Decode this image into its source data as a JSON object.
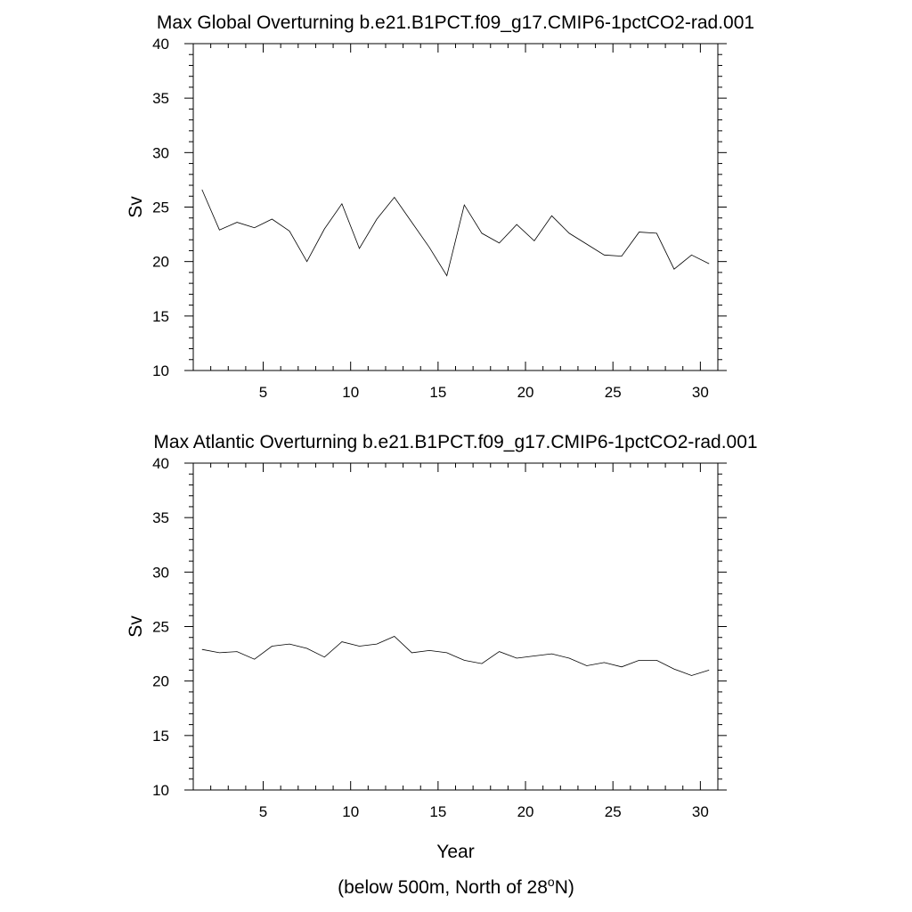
{
  "chart_data": [
    {
      "type": "line",
      "title": "Max Global Overturning b.e21.B1PCT.f09_g17.CMIP6-1pctCO2-rad.001",
      "xlabel": "",
      "ylabel": "Sv",
      "xlim": [
        1,
        31
      ],
      "ylim": [
        10,
        40
      ],
      "xticks": [
        5,
        10,
        15,
        20,
        25,
        30
      ],
      "yticks": [
        10,
        15,
        20,
        25,
        30,
        35,
        40
      ],
      "grid": false,
      "series": [
        {
          "x": [
            1.5,
            2.5,
            3.5,
            4.5,
            5.5,
            6.5,
            7.5,
            8.5,
            9.5,
            10.5,
            11.5,
            12.5,
            13.5,
            14.5,
            15.5,
            16.5,
            17.5,
            18.5,
            19.5,
            20.5,
            21.5,
            22.5,
            23.5,
            24.5,
            25.5,
            26.5,
            27.5,
            28.5,
            29.5,
            30.5
          ],
          "values": [
            26.6,
            22.9,
            23.6,
            23.1,
            23.9,
            22.8,
            20.0,
            23.0,
            25.3,
            21.2,
            23.9,
            25.9,
            23.6,
            21.3,
            18.7,
            25.2,
            22.6,
            21.7,
            23.4,
            21.9,
            24.2,
            22.6,
            21.6,
            20.6,
            20.5,
            22.7,
            22.6,
            19.3,
            20.6,
            19.8
          ]
        }
      ]
    },
    {
      "type": "line",
      "title": "Max Atlantic Overturning b.e21.B1PCT.f09_g17.CMIP6-1pctCO2-rad.001",
      "xlabel": "Year",
      "ylabel": "Sv",
      "xlim": [
        1,
        31
      ],
      "ylim": [
        10,
        40
      ],
      "xticks": [
        5,
        10,
        15,
        20,
        25,
        30
      ],
      "yticks": [
        10,
        15,
        20,
        25,
        30,
        35,
        40
      ],
      "grid": false,
      "series": [
        {
          "x": [
            1.5,
            2.5,
            3.5,
            4.5,
            5.5,
            6.5,
            7.5,
            8.5,
            9.5,
            10.5,
            11.5,
            12.5,
            13.5,
            14.5,
            15.5,
            16.5,
            17.5,
            18.5,
            19.5,
            20.5,
            21.5,
            22.5,
            23.5,
            24.5,
            25.5,
            26.5,
            27.5,
            28.5,
            29.5,
            30.5
          ],
          "values": [
            22.9,
            22.6,
            22.7,
            22.0,
            23.2,
            23.4,
            23.0,
            22.2,
            23.6,
            23.2,
            23.4,
            24.1,
            22.6,
            22.8,
            22.6,
            21.9,
            21.6,
            22.7,
            22.1,
            22.3,
            22.5,
            22.1,
            21.4,
            21.7,
            21.3,
            21.9,
            21.9,
            21.1,
            20.5,
            21.0
          ]
        }
      ]
    }
  ],
  "footnote": {
    "prefix": "(below 500m, North of 28",
    "superscript": "o",
    "suffix": "N)"
  }
}
